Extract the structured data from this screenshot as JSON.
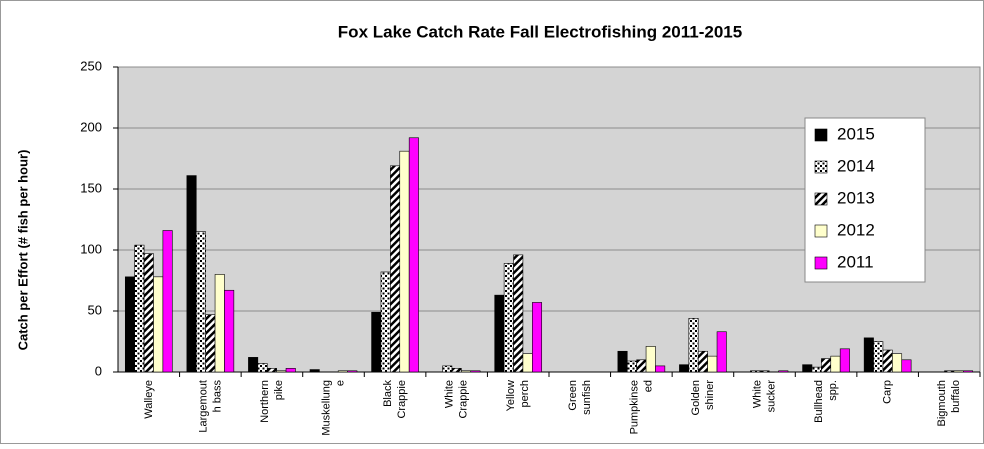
{
  "chart_data": {
    "type": "bar",
    "title": "Fox Lake Catch Rate Fall Electrofishing 2011-2015",
    "y_label": "Catch per Effort (# fish per hour)",
    "categories": [
      "Walleye",
      "Largemout\nh bass",
      "Northern\npike",
      "Muskellung\ne",
      "Black\nCrappie",
      "White\nCrappie",
      "Yellow\nperch",
      "Green\nsunfish",
      "Pumpkinse\ned",
      "Golden\nshiner",
      "White\nsucker",
      "Bullhead\nspp.",
      "Carp",
      "Bigmouth\nbuffalo"
    ],
    "series": [
      {
        "name": "2015",
        "color": "#000000",
        "pattern": "solid",
        "values": [
          78,
          161,
          12,
          2,
          49,
          0,
          63,
          0,
          17,
          6,
          0,
          6,
          28,
          0
        ]
      },
      {
        "name": "2014",
        "color": "#000000",
        "pattern": "dots",
        "values": [
          104,
          115,
          7,
          0,
          82,
          5,
          89,
          0,
          9,
          44,
          1,
          4,
          25,
          0
        ]
      },
      {
        "name": "2013",
        "color": "#000000",
        "pattern": "hatch",
        "values": [
          97,
          47,
          3,
          0,
          169,
          3,
          96,
          0,
          10,
          17,
          1,
          11,
          18,
          1
        ]
      },
      {
        "name": "2012",
        "color": "#ffffcc",
        "pattern": "solid",
        "values": [
          78,
          80,
          1,
          1,
          181,
          1,
          15,
          0,
          21,
          13,
          0,
          13,
          15,
          1
        ]
      },
      {
        "name": "2011",
        "color": "#ff00ff",
        "pattern": "solid",
        "values": [
          116,
          67,
          3,
          1,
          192,
          1,
          57,
          0,
          5,
          33,
          1,
          19,
          10,
          1
        ]
      }
    ],
    "ylim": [
      0,
      250
    ],
    "yticks": [
      0,
      50,
      100,
      150,
      200,
      250
    ],
    "grid": true,
    "legend": "right"
  }
}
